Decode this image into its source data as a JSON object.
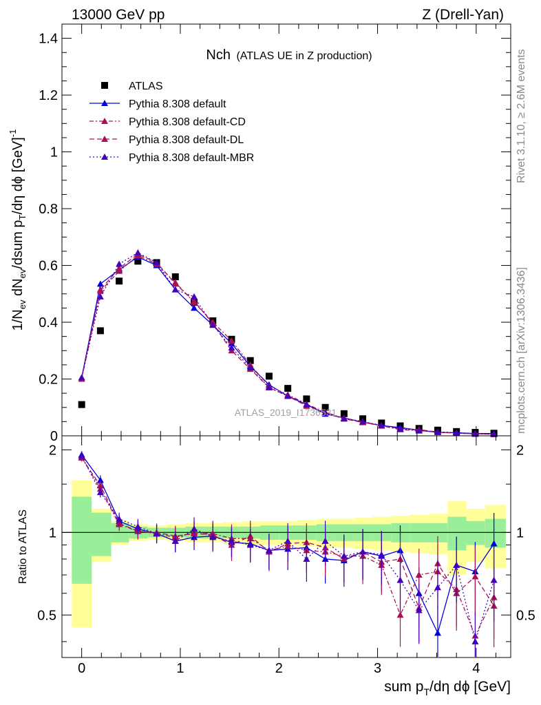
{
  "header": {
    "left": "13000 GeV pp",
    "right": "Z (Drell-Yan)"
  },
  "side_labels": {
    "top": "Rivet 3.1.10, ≥ 2.6M events",
    "bottom": "mcplots.cern.ch [arXiv:1306.3436]"
  },
  "chart_data": {
    "type": "scatter",
    "title_main": "Nch",
    "title_sub": "(ATLAS UE in Z production)",
    "watermark": "ATLAS_2019_I1736531",
    "xlabel": "sum p_T/dη dϕ [GeV]",
    "ylabel": "1/N_ev dN_ev/dsum p_T/dη dϕ [GeV]^-1",
    "ratio_ylabel": "Ratio to ATLAS",
    "xlim": [
      -0.2,
      4.35
    ],
    "ylim": [
      0,
      1.45
    ],
    "ratio_ylim": [
      0.35,
      2.25
    ],
    "x_ticks": [
      0,
      1,
      2,
      3,
      4
    ],
    "y_ticks": [
      0,
      0.2,
      0.4,
      0.6,
      0.8,
      1,
      1.2,
      1.4
    ],
    "ratio_ticks": [
      0.5,
      1,
      2
    ],
    "x": [
      0.0,
      0.19,
      0.38,
      0.57,
      0.76,
      0.95,
      1.14,
      1.33,
      1.52,
      1.71,
      1.9,
      2.09,
      2.28,
      2.47,
      2.66,
      2.85,
      3.04,
      3.23,
      3.42,
      3.61,
      3.8,
      3.99,
      4.18
    ],
    "bin_edges": [
      -0.1,
      0.1,
      0.3,
      0.48,
      0.67,
      0.86,
      1.05,
      1.24,
      1.43,
      1.62,
      1.81,
      2.0,
      2.19,
      2.38,
      2.57,
      2.76,
      2.95,
      3.14,
      3.33,
      3.52,
      3.71,
      3.9,
      4.09,
      4.3
    ],
    "band_inner": [
      0.35,
      0.18,
      0.08,
      0.05,
      0.04,
      0.04,
      0.05,
      0.05,
      0.05,
      0.05,
      0.06,
      0.06,
      0.06,
      0.07,
      0.07,
      0.07,
      0.07,
      0.08,
      0.08,
      0.08,
      0.14,
      0.1,
      0.12
    ],
    "band_outer": [
      0.55,
      0.22,
      0.1,
      0.07,
      0.06,
      0.07,
      0.08,
      0.08,
      0.09,
      0.1,
      0.1,
      0.1,
      0.11,
      0.12,
      0.12,
      0.13,
      0.14,
      0.15,
      0.16,
      0.17,
      0.3,
      0.22,
      0.26
    ],
    "series": [
      {
        "name": "ATLAS",
        "color": "#000000",
        "marker": "square",
        "dash": "",
        "values": [
          0.11,
          0.37,
          0.545,
          0.615,
          0.61,
          0.56,
          0.47,
          0.405,
          0.34,
          0.265,
          0.21,
          0.167,
          0.13,
          0.1,
          0.078,
          0.06,
          0.045,
          0.035,
          0.026,
          0.02,
          0.015,
          0.012,
          0.009
        ],
        "ratio": []
      },
      {
        "name": "Pythia 8.308 default",
        "color": "#0000dd",
        "marker": "triangle",
        "dash": "",
        "values": [
          0.205,
          0.535,
          0.585,
          0.63,
          0.6,
          0.515,
          0.45,
          0.39,
          0.325,
          0.245,
          0.18,
          0.14,
          0.11,
          0.077,
          0.063,
          0.048,
          0.036,
          0.029,
          0.02,
          0.012,
          0.011,
          0.008,
          0.008
        ],
        "ratio": [
          1.92,
          1.55,
          1.1,
          1.03,
          0.99,
          0.93,
          0.96,
          0.97,
          0.92,
          0.91,
          0.86,
          0.87,
          0.88,
          0.8,
          0.79,
          0.85,
          0.82,
          0.86,
          0.6,
          0.43,
          0.76,
          0.72,
          0.91
        ]
      },
      {
        "name": "Pythia 8.308 default-CD",
        "color": "#aa1155",
        "marker": "triangle",
        "dash": "6,3,2,3",
        "values": [
          0.2,
          0.51,
          0.58,
          0.635,
          0.605,
          0.54,
          0.47,
          0.4,
          0.335,
          0.25,
          0.175,
          0.145,
          0.112,
          0.083,
          0.062,
          0.05,
          0.035,
          0.022,
          0.018,
          0.013,
          0.009,
          0.007,
          0.006
        ],
        "ratio": [
          1.88,
          1.44,
          1.07,
          1.01,
          0.99,
          0.96,
          1.0,
          0.99,
          0.95,
          0.95,
          0.86,
          0.89,
          0.86,
          0.85,
          0.82,
          0.82,
          0.76,
          0.5,
          0.7,
          0.72,
          0.62,
          0.42,
          0.58
        ]
      },
      {
        "name": "Pythia 8.308 default-DL",
        "color": "#aa1155",
        "marker": "triangle",
        "dash": "7,4",
        "values": [
          0.205,
          0.515,
          0.59,
          0.64,
          0.61,
          0.535,
          0.475,
          0.395,
          0.3,
          0.235,
          0.17,
          0.14,
          0.105,
          0.082,
          0.06,
          0.047,
          0.036,
          0.025,
          0.022,
          0.013,
          0.009,
          0.008,
          0.005
        ],
        "ratio": [
          1.87,
          1.48,
          1.08,
          1.01,
          1.0,
          0.97,
          0.99,
          0.98,
          0.9,
          0.97,
          0.85,
          0.91,
          0.92,
          0.88,
          0.8,
          0.85,
          0.78,
          0.8,
          0.53,
          0.77,
          0.6,
          0.69,
          0.54
        ]
      },
      {
        "name": "Pythia 8.308 default-MBR",
        "color": "#4400bb",
        "marker": "triangle",
        "dash": "2,3",
        "values": [
          0.205,
          0.49,
          0.605,
          0.645,
          0.61,
          0.515,
          0.49,
          0.39,
          0.31,
          0.24,
          0.17,
          0.14,
          0.11,
          0.08,
          0.06,
          0.05,
          0.037,
          0.025,
          0.018,
          0.014,
          0.011,
          0.006,
          0.006
        ],
        "ratio": [
          1.9,
          1.4,
          1.12,
          1.05,
          0.99,
          0.93,
          1.03,
          0.96,
          0.93,
          0.9,
          0.86,
          0.93,
          0.8,
          0.93,
          0.82,
          0.85,
          0.83,
          0.67,
          0.52,
          0.63,
          0.76,
          0.4,
          0.67
        ]
      }
    ]
  }
}
